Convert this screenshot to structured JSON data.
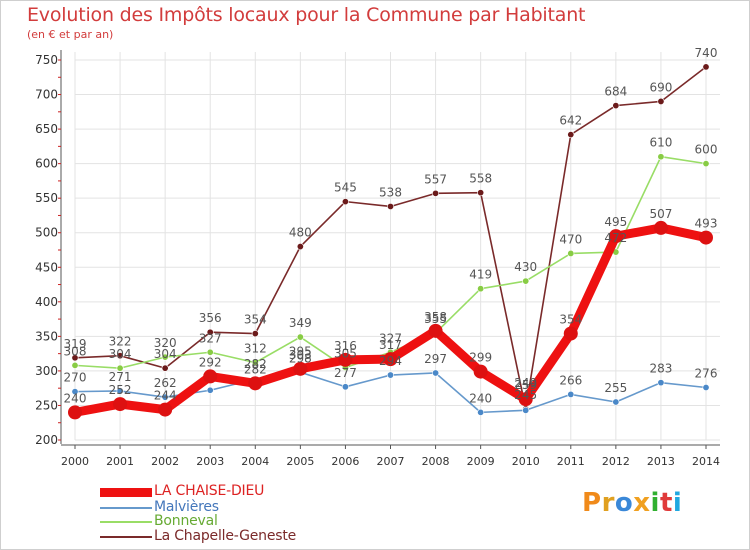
{
  "title": "Evolution des Impôts locaux pour la Commune par Habitant",
  "subtitle": "(en € et par an)",
  "logo_text": "Proxiti",
  "colors": {
    "title": "#d23c3c",
    "grid": "#e3e3e3",
    "axis_text": "#333333",
    "label_text": "#555555",
    "tick_red": "#cc2222"
  },
  "chart_data": {
    "type": "line",
    "title": "Evolution des Impôts locaux pour la Commune par Habitant",
    "subtitle": "(en € et par an)",
    "xlabel": "",
    "ylabel": "",
    "categories": [
      "2000",
      "2001",
      "2002",
      "2003",
      "2004",
      "2005",
      "2006",
      "2007",
      "2008",
      "2009",
      "2010",
      "2011",
      "2012",
      "2013",
      "2014"
    ],
    "y_ticks": [
      200,
      250,
      300,
      350,
      400,
      450,
      500,
      550,
      600,
      650,
      700,
      750
    ],
    "ylim": [
      200,
      750
    ],
    "grid": true,
    "legend_position": "bottom-left",
    "series": [
      {
        "name": "La Chapelle-Geneste",
        "color": "#7a2a2a",
        "marker": "#6b1a1a",
        "style": "thin",
        "values": [
          319,
          322,
          304,
          356,
          354,
          480,
          545,
          538,
          557,
          558,
          245,
          642,
          684,
          690,
          740
        ],
        "label_values": [
          "319",
          "322",
          "304",
          "356",
          "354",
          "480",
          "545",
          "538",
          "557",
          "558",
          "245",
          "642",
          "684",
          "690",
          "740"
        ]
      },
      {
        "name": "Bonneval",
        "color": "#99dd66",
        "marker": "#88cc44",
        "style": "thin",
        "values": [
          308,
          304,
          320,
          327,
          312,
          349,
          305,
          327,
          355,
          419,
          430,
          470,
          472,
          610,
          600
        ],
        "label_values": [
          "308",
          "304",
          "320",
          "327",
          "312",
          "349",
          "305",
          "327",
          "355",
          "419",
          "430",
          "470",
          "472",
          "610",
          "600"
        ]
      },
      {
        "name": "Malvières",
        "color": "#6699cc",
        "marker": "#4a88c8",
        "style": "thin",
        "values": [
          270,
          271,
          262,
          272,
          288,
          298,
          277,
          294,
          297,
          240,
          243,
          266,
          255,
          283,
          276
        ],
        "label_values": [
          "270",
          "271",
          "262",
          "",
          "",
          "298",
          "277",
          "294",
          "297",
          "240",
          "",
          "266",
          "255",
          "283",
          "276"
        ]
      },
      {
        "name": "LA CHAISE-DIEU",
        "color": "#ee1111",
        "marker": "#dd1111",
        "style": "thick",
        "values": [
          240,
          252,
          244,
          292,
          282,
          303,
          316,
          317,
          358,
          299,
          259,
          354,
          495,
          507,
          493
        ],
        "label_values": [
          "240",
          "252",
          "244",
          "292",
          "282",
          "303",
          "316",
          "317",
          "358",
          "299",
          "259",
          "354",
          "495",
          "507",
          "493"
        ]
      }
    ],
    "extra_labels": [
      "282",
      "249",
      "295"
    ]
  },
  "legend": [
    {
      "name": "LA CHAISE-DIEU",
      "color": "#ee1111",
      "thickness": 9,
      "label_color": "#dd2222"
    },
    {
      "name": "Malvières",
      "color": "#6699cc",
      "thickness": 2,
      "label_color": "#4477bb"
    },
    {
      "name": "Bonneval",
      "color": "#99dd66",
      "thickness": 2,
      "label_color": "#66aa33"
    },
    {
      "name": "La Chapelle-Geneste",
      "color": "#7a2a2a",
      "thickness": 2,
      "label_color": "#7a2a2a"
    }
  ]
}
